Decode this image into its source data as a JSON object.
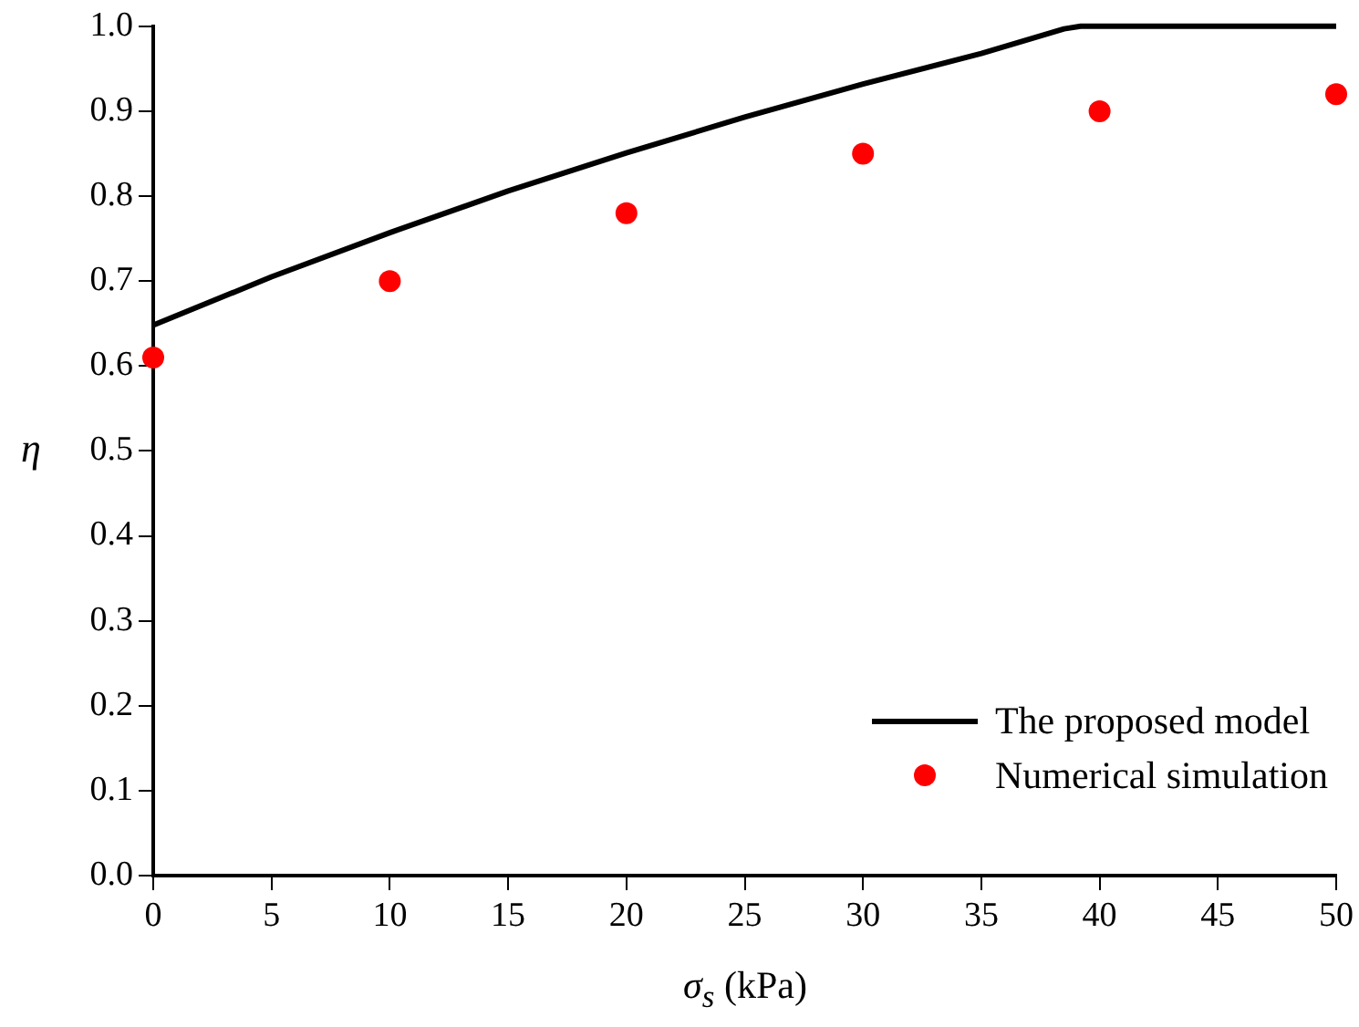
{
  "chart_data": {
    "type": "line",
    "xlabel": "σ$_{s}$ (kPa)",
    "ylabel": "η",
    "xlim": [
      0,
      50
    ],
    "ylim": [
      0,
      1
    ],
    "xticks": [
      0,
      5,
      10,
      15,
      20,
      25,
      30,
      35,
      40,
      45,
      50
    ],
    "yticks": [
      {
        "value": 0,
        "label": "0.0"
      },
      {
        "value": 0.1,
        "label": "0.1"
      },
      {
        "value": 0.2,
        "label": "0.2"
      },
      {
        "value": 0.3,
        "label": "0.3"
      },
      {
        "value": 0.4,
        "label": "0.4"
      },
      {
        "value": 0.5,
        "label": "0.5"
      },
      {
        "value": 0.6,
        "label": "0.6"
      },
      {
        "value": 0.7,
        "label": "0.7"
      },
      {
        "value": 0.8,
        "label": "0.8"
      },
      {
        "value": 0.9,
        "label": "0.9"
      },
      {
        "value": 1,
        "label": "1.0"
      }
    ],
    "grid": false,
    "legend": "bottom right",
    "series": [
      {
        "name": "The proposed model",
        "color": "#000000",
        "marker": "none",
        "line_style": "solid",
        "x": [
          0,
          5,
          10,
          15,
          20,
          25,
          30,
          35,
          38.5,
          39.2,
          50
        ],
        "values": [
          0.648,
          0.705,
          0.757,
          0.806,
          0.851,
          0.893,
          0.932,
          0.968,
          0.997,
          1.0,
          1.0
        ]
      },
      {
        "name": "Numerical simulation",
        "type": "scatter",
        "color": "#ff0000",
        "marker": "circle",
        "x": [
          0,
          10,
          20,
          30,
          40,
          50
        ],
        "values": [
          0.61,
          0.7,
          0.78,
          0.85,
          0.9,
          0.92
        ]
      }
    ]
  }
}
